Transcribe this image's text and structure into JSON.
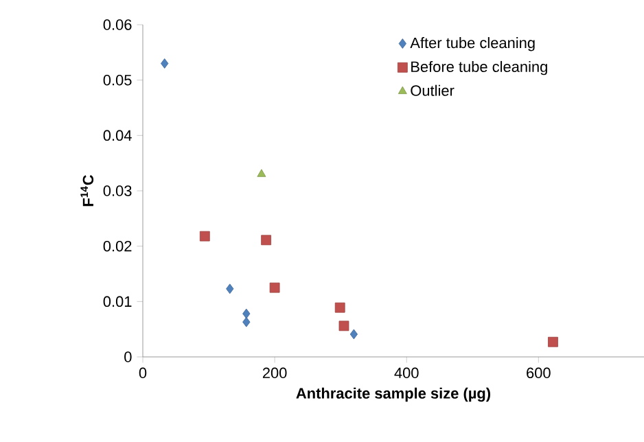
{
  "chart_data": {
    "type": "scatter",
    "xlabel": "Anthracite sample size (µg)",
    "ylabel": "F$^{14}$C",
    "xlim": [
      0,
      760
    ],
    "xticks": [
      0,
      200,
      400,
      600
    ],
    "ylim": [
      0,
      0.06
    ],
    "yticks": [
      0,
      0.01,
      0.02,
      0.03,
      0.04,
      0.05,
      0.06
    ],
    "legend": "top right",
    "grid": false,
    "series": [
      {
        "name": "After tube cleaning",
        "color": "#4f81bd",
        "marker": "diamond",
        "x": [
          33,
          132,
          157,
          157,
          320
        ],
        "values": [
          0.053,
          0.0123,
          0.0078,
          0.0063,
          0.0041
        ]
      },
      {
        "name": "Before tube cleaning",
        "color": "#c0504d",
        "marker": "square",
        "x": [
          94,
          187,
          200,
          299,
          305,
          622
        ],
        "values": [
          0.0218,
          0.0211,
          0.0125,
          0.0089,
          0.0056,
          0.0027
        ]
      },
      {
        "name": "Outlier",
        "color": "#9bbb59",
        "marker": "triangle",
        "x": [
          180
        ],
        "values": [
          0.033
        ]
      }
    ]
  }
}
